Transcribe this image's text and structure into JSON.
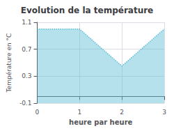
{
  "chart_data": {
    "type": "line",
    "title": "Evolution de la température",
    "xlabel": "heure par heure",
    "ylabel": "Température en °C",
    "x": [
      0,
      1,
      2,
      3
    ],
    "series": [
      {
        "values": [
          1.0,
          1.0,
          0.45,
          1.0
        ],
        "color": "#5bbcd6",
        "line_style": "dotted"
      }
    ],
    "xlim": [
      0,
      3
    ],
    "xticks": [
      0,
      1,
      2,
      3
    ],
    "ylim": [
      -0.1,
      1.1
    ],
    "yticks": [
      -0.1,
      0.3,
      0.7,
      1.1
    ],
    "grid": true
  }
}
